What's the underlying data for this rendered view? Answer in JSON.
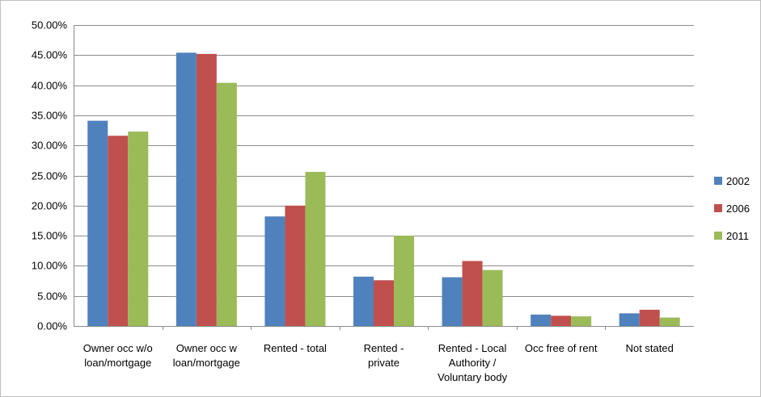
{
  "chart_data": {
    "type": "bar",
    "categories": [
      [
        "Owner occ w/o",
        "loan/mortgage"
      ],
      [
        "Owner occ w",
        "loan/mortgage"
      ],
      [
        "Rented - total"
      ],
      [
        "Rented -",
        "private"
      ],
      [
        "Rented - Local",
        "Authority /",
        "Voluntary body"
      ],
      [
        "Occ free of rent"
      ],
      [
        "Not stated"
      ]
    ],
    "series": [
      {
        "name": "2002",
        "color": "#4f81bd",
        "values": [
          0.341,
          0.454,
          0.182,
          0.082,
          0.081,
          0.019,
          0.021
        ]
      },
      {
        "name": "2006",
        "color": "#c0504d",
        "values": [
          0.316,
          0.452,
          0.2,
          0.076,
          0.108,
          0.017,
          0.027
        ]
      },
      {
        "name": "2011",
        "color": "#9bbb59",
        "values": [
          0.323,
          0.404,
          0.256,
          0.15,
          0.093,
          0.016,
          0.014
        ]
      }
    ],
    "ylim": [
      0,
      0.5
    ],
    "ytick_step": 0.05,
    "yticks": [
      "0.00%",
      "5.00%",
      "10.00%",
      "15.00%",
      "20.00%",
      "25.00%",
      "30.00%",
      "35.00%",
      "40.00%",
      "45.00%",
      "50.00%"
    ],
    "grid": true,
    "legend_position": "right",
    "title": "",
    "xlabel": "",
    "ylabel": ""
  }
}
